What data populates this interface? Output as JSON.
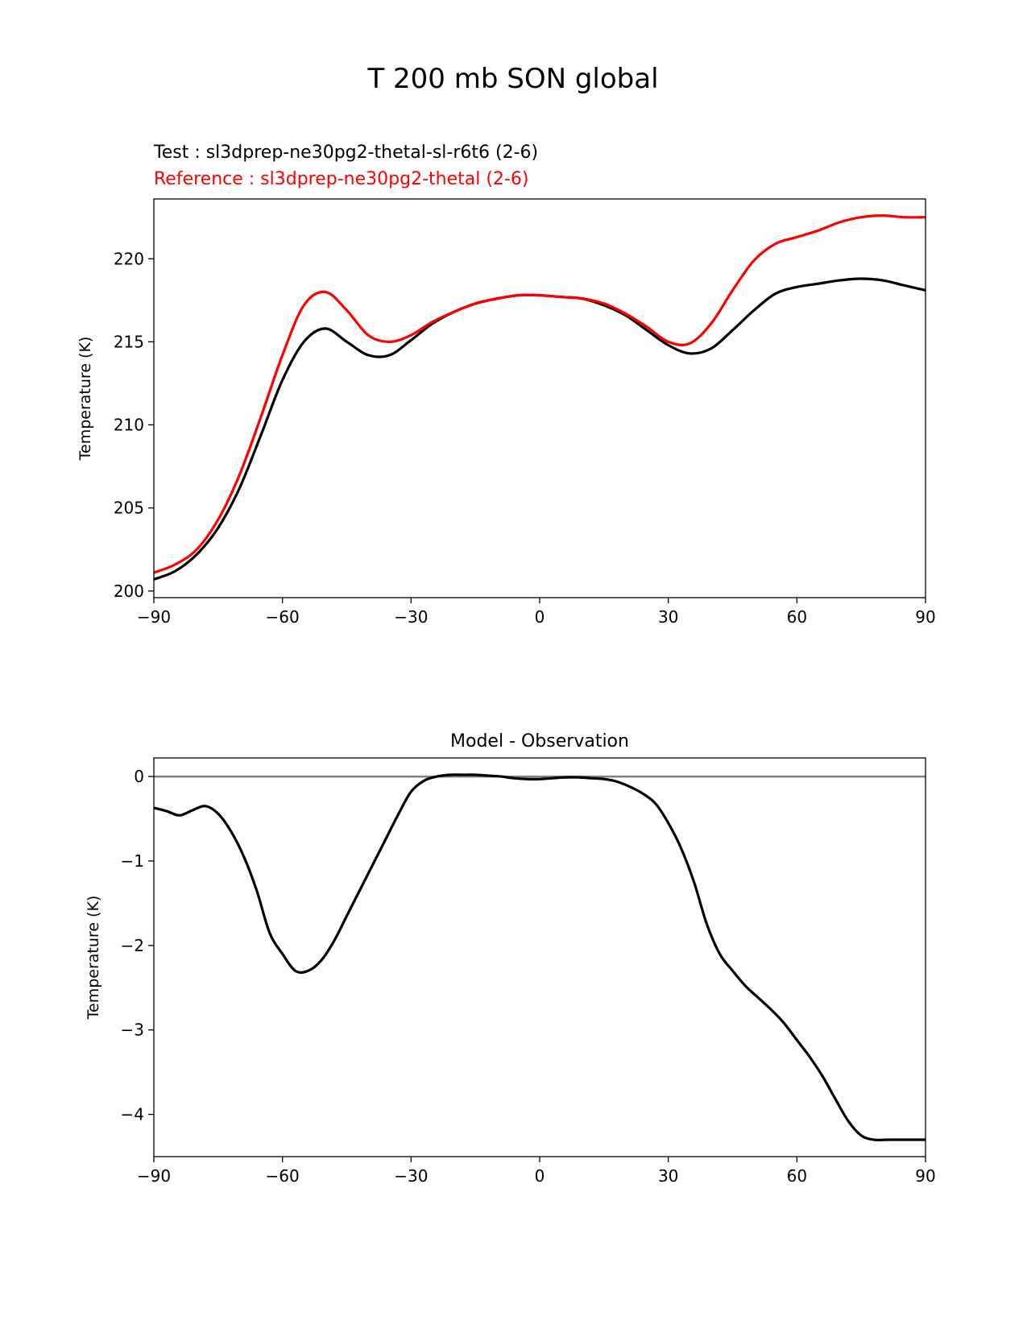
{
  "figure": {
    "title": "T 200 mb SON global",
    "legend_test": "Test : sl3dprep-ne30pg2-thetal-sl-r6t6 (2-6)",
    "legend_reference": "Reference : sl3dprep-ne30pg2-thetal (2-6)",
    "colors": {
      "test": "#000000",
      "reference": "#ff0000",
      "zero_line": "#808080"
    }
  },
  "chart_data": [
    {
      "type": "line",
      "title": "",
      "xlabel": "",
      "ylabel": "Temperature (K)",
      "xlim": [
        -90,
        90
      ],
      "ylim": [
        199.6,
        223.6
      ],
      "xticks": [
        -90,
        -60,
        -30,
        0,
        30,
        60,
        90
      ],
      "xtick_labels": [
        "−90",
        "−60",
        "−30",
        "0",
        "30",
        "60",
        "90"
      ],
      "yticks": [
        200,
        205,
        210,
        215,
        220
      ],
      "ytick_labels": [
        "200",
        "205",
        "210",
        "215",
        "220"
      ],
      "grid": false,
      "series": [
        {
          "name": "Test",
          "color": "#000000",
          "x": [
            -90,
            -85,
            -80,
            -75,
            -70,
            -65,
            -60,
            -55,
            -50,
            -45,
            -40,
            -35,
            -30,
            -25,
            -20,
            -15,
            -10,
            -5,
            0,
            5,
            10,
            15,
            20,
            25,
            30,
            35,
            40,
            45,
            50,
            55,
            60,
            65,
            70,
            75,
            80,
            85,
            90
          ],
          "y": [
            200.7,
            201.2,
            202.2,
            203.8,
            206.2,
            209.4,
            212.7,
            215.0,
            215.8,
            215.0,
            214.2,
            214.2,
            215.1,
            216.1,
            216.8,
            217.3,
            217.6,
            217.8,
            217.8,
            217.7,
            217.6,
            217.2,
            216.6,
            215.7,
            214.8,
            214.3,
            214.6,
            215.7,
            216.9,
            217.9,
            218.3,
            218.5,
            218.7,
            218.8,
            218.7,
            218.4,
            218.1
          ]
        },
        {
          "name": "Reference",
          "color": "#ff0000",
          "x": [
            -90,
            -85,
            -80,
            -75,
            -70,
            -65,
            -60,
            -55,
            -50,
            -45,
            -40,
            -35,
            -30,
            -25,
            -20,
            -15,
            -10,
            -5,
            0,
            5,
            10,
            15,
            20,
            25,
            30,
            35,
            40,
            45,
            50,
            55,
            60,
            65,
            70,
            75,
            80,
            85,
            90
          ],
          "y": [
            201.1,
            201.6,
            202.5,
            204.3,
            207.0,
            210.5,
            214.2,
            217.2,
            218.0,
            216.9,
            215.4,
            215.0,
            215.4,
            216.2,
            216.8,
            217.3,
            217.6,
            217.8,
            217.8,
            217.7,
            217.6,
            217.3,
            216.7,
            215.9,
            215.0,
            214.9,
            216.1,
            218.1,
            219.9,
            220.9,
            221.3,
            221.7,
            222.2,
            222.5,
            222.6,
            222.5,
            222.5
          ]
        }
      ]
    },
    {
      "type": "line",
      "title": "Model - Observation",
      "xlabel": "",
      "ylabel": "Temperature (K)",
      "xlim": [
        -90,
        90
      ],
      "ylim": [
        -4.5,
        0.22
      ],
      "xticks": [
        -90,
        -60,
        -30,
        0,
        30,
        60,
        90
      ],
      "xtick_labels": [
        "−90",
        "−60",
        "−30",
        "0",
        "30",
        "60",
        "90"
      ],
      "yticks": [
        0,
        -1,
        -2,
        -3,
        -4
      ],
      "ytick_labels": [
        "0",
        "−1",
        "−2",
        "−3",
        "−4"
      ],
      "grid": false,
      "reference_line": 0,
      "series": [
        {
          "name": "",
          "color": "#000000",
          "x": [
            -90,
            -87,
            -84,
            -81,
            -78,
            -75,
            -72,
            -69,
            -66,
            -63,
            -60,
            -57,
            -54,
            -51,
            -48,
            -45,
            -42,
            -39,
            -36,
            -33,
            -30,
            -27,
            -24,
            -21,
            -18,
            -15,
            -12,
            -9,
            -6,
            -3,
            0,
            3,
            6,
            9,
            12,
            15,
            18,
            21,
            24,
            27,
            30,
            33,
            36,
            39,
            42,
            45,
            48,
            51,
            54,
            57,
            60,
            63,
            66,
            69,
            72,
            75,
            78,
            81,
            84,
            87,
            90
          ],
          "y": [
            -0.37,
            -0.41,
            -0.46,
            -0.4,
            -0.35,
            -0.44,
            -0.65,
            -0.95,
            -1.35,
            -1.85,
            -2.1,
            -2.3,
            -2.3,
            -2.18,
            -1.95,
            -1.65,
            -1.35,
            -1.05,
            -0.75,
            -0.45,
            -0.18,
            -0.05,
            0.0,
            0.02,
            0.02,
            0.02,
            0.01,
            0.0,
            -0.02,
            -0.03,
            -0.03,
            -0.02,
            -0.01,
            -0.01,
            -0.02,
            -0.03,
            -0.06,
            -0.12,
            -0.2,
            -0.32,
            -0.55,
            -0.85,
            -1.25,
            -1.75,
            -2.1,
            -2.3,
            -2.48,
            -2.62,
            -2.76,
            -2.92,
            -3.12,
            -3.32,
            -3.55,
            -3.82,
            -4.08,
            -4.25,
            -4.3,
            -4.3,
            -4.3,
            -4.3,
            -4.3
          ]
        }
      ]
    }
  ]
}
